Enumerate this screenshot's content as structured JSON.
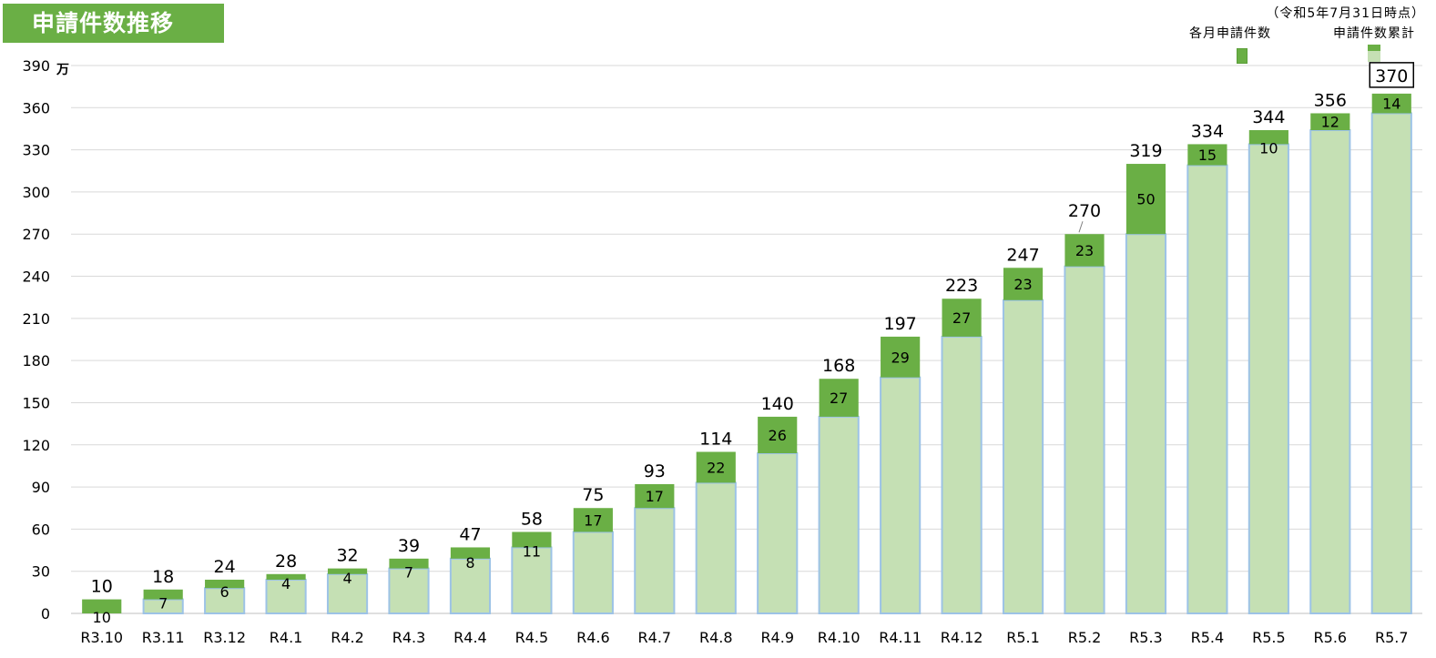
{
  "header": {
    "title": "申請件数推移",
    "as_of": "（令和5年7月31日時点）"
  },
  "legend": {
    "monthly_label": "各月申請件数",
    "cumulative_label": "申請件数累計"
  },
  "colors": {
    "monthly": "#6aaf45",
    "cumulative": "#c5e0b4",
    "cumulative_border": "#9dc3e6",
    "grid": "#d9d9d9"
  },
  "chart_data": {
    "type": "bar",
    "stacked": true,
    "title": "申請件数推移",
    "y_unit": "万",
    "ylim": [
      0,
      390
    ],
    "yticks": [
      0,
      30,
      60,
      90,
      120,
      150,
      180,
      210,
      240,
      270,
      300,
      330,
      360,
      390
    ],
    "grid": true,
    "legend_position": "top-right",
    "categories": [
      "R3.10",
      "R3.11",
      "R3.12",
      "R4.1",
      "R4.2",
      "R4.3",
      "R4.4",
      "R4.5",
      "R4.6",
      "R4.7",
      "R4.8",
      "R4.9",
      "R4.10",
      "R4.11",
      "R4.12",
      "R5.1",
      "R5.2",
      "R5.3",
      "R5.4",
      "R5.5",
      "R5.6",
      "R5.7"
    ],
    "series": [
      {
        "name": "申請件数累計",
        "values": [
          0,
          10,
          18,
          24,
          28,
          32,
          39,
          47,
          58,
          75,
          93,
          114,
          140,
          168,
          197,
          223,
          247,
          270,
          319,
          334,
          344,
          356
        ]
      },
      {
        "name": "各月申請件数",
        "values": [
          10,
          7,
          6,
          4,
          4,
          7,
          8,
          11,
          17,
          17,
          22,
          26,
          27,
          29,
          27,
          23,
          23,
          50,
          15,
          10,
          12,
          14
        ]
      }
    ],
    "totals": [
      10,
      18,
      24,
      28,
      32,
      39,
      47,
      58,
      75,
      93,
      114,
      140,
      168,
      197,
      223,
      247,
      270,
      319,
      334,
      344,
      356,
      370
    ],
    "highlighted_total": "370"
  }
}
